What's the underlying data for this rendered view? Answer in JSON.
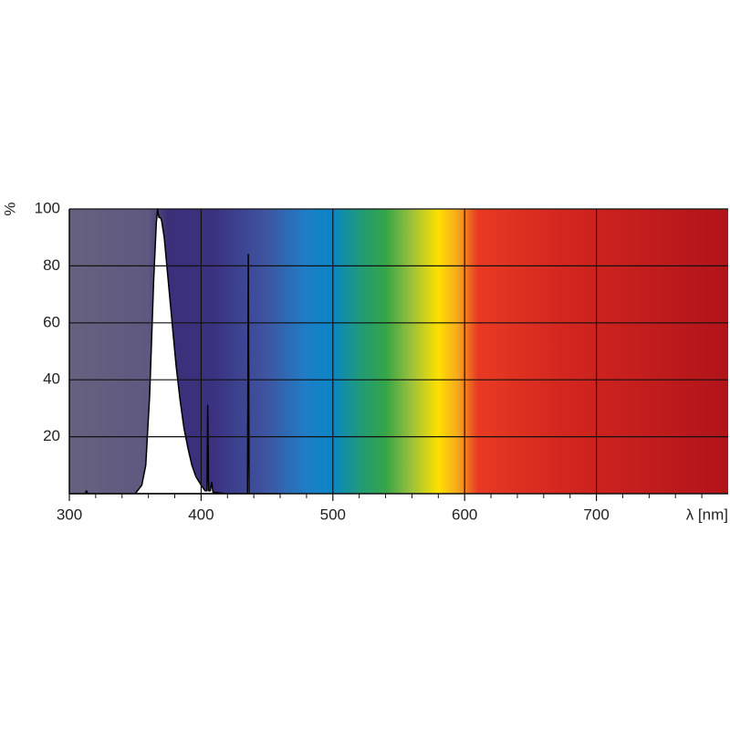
{
  "chart_data": {
    "type": "area",
    "color": "#ffffff",
    "line_color": "#000000",
    "x_label": "λ [nm]",
    "y_label": "%",
    "x": [
      300,
      312,
      313,
      314,
      350,
      355,
      358,
      361,
      364,
      366,
      367,
      368,
      369,
      370,
      372,
      375,
      378,
      381,
      384,
      387,
      390,
      393,
      396,
      400,
      403,
      404.5,
      405,
      405.7,
      407,
      408,
      409,
      420,
      435.2,
      435.8,
      436.4,
      460
    ],
    "values": [
      0,
      0,
      1,
      0,
      0,
      3,
      10,
      35,
      75,
      95,
      100,
      97,
      97,
      96,
      90,
      75,
      60,
      45,
      33,
      23,
      16,
      10,
      6,
      3,
      1,
      1,
      31,
      1,
      1,
      4,
      0.5,
      0,
      0,
      84,
      0,
      0
    ],
    "xlim": [
      300,
      800
    ],
    "ylim": [
      0,
      100
    ],
    "xticks": [
      300,
      400,
      500,
      600,
      700
    ],
    "xminorticks": [
      320,
      340,
      360,
      380,
      420,
      440,
      460,
      480,
      520,
      540,
      560,
      580,
      620,
      640,
      660,
      680,
      720,
      740,
      760,
      780
    ],
    "yticks": [
      20,
      40,
      60,
      80,
      100
    ],
    "grid": true
  }
}
